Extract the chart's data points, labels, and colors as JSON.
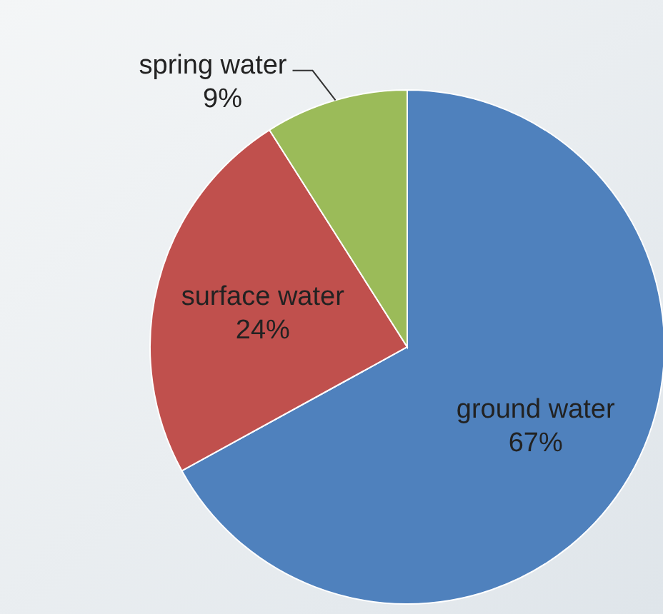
{
  "chart_data": {
    "type": "pie",
    "categories": [
      "ground water",
      "surface water",
      "spring water"
    ],
    "values": [
      67,
      24,
      9
    ],
    "value_labels": [
      "67%",
      "24%",
      "9%"
    ],
    "colors": [
      "#4f81bd",
      "#c0504d",
      "#9bbb59"
    ]
  }
}
